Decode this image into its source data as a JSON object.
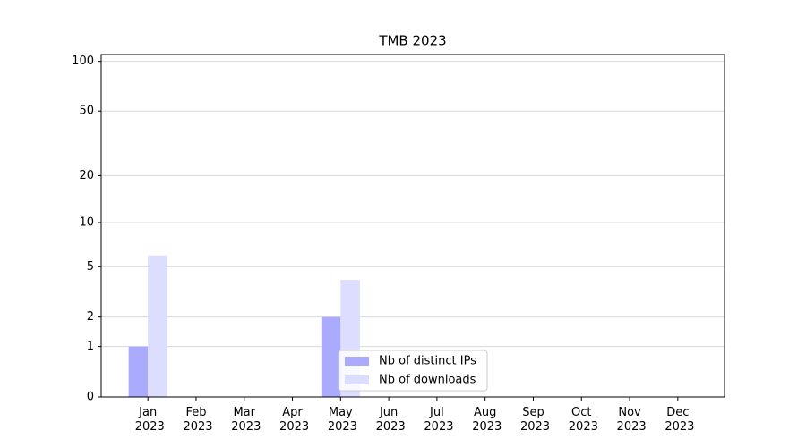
{
  "chart_data": {
    "type": "bar",
    "title": "TMB 2023",
    "categories": [
      "Jan 2023",
      "Feb 2023",
      "Mar 2023",
      "Apr 2023",
      "May 2023",
      "Jun 2023",
      "Jul 2023",
      "Aug 2023",
      "Sep 2023",
      "Oct 2023",
      "Nov 2023",
      "Dec 2023"
    ],
    "series": [
      {
        "name": "Nb of distinct IPs",
        "color": "#aaaaff",
        "values": [
          1,
          0,
          0,
          0,
          2,
          0,
          0,
          0,
          0,
          0,
          0,
          0
        ]
      },
      {
        "name": "Nb of downloads",
        "color": "#ddddff",
        "values": [
          6,
          0,
          0,
          0,
          4,
          0,
          0,
          0,
          0,
          0,
          0,
          0
        ]
      }
    ],
    "yscale": "log1p",
    "ylim": [
      0,
      110
    ],
    "yticks": [
      0,
      1,
      2,
      5,
      10,
      20,
      50,
      100
    ],
    "grid": true,
    "legend": "lower center"
  }
}
